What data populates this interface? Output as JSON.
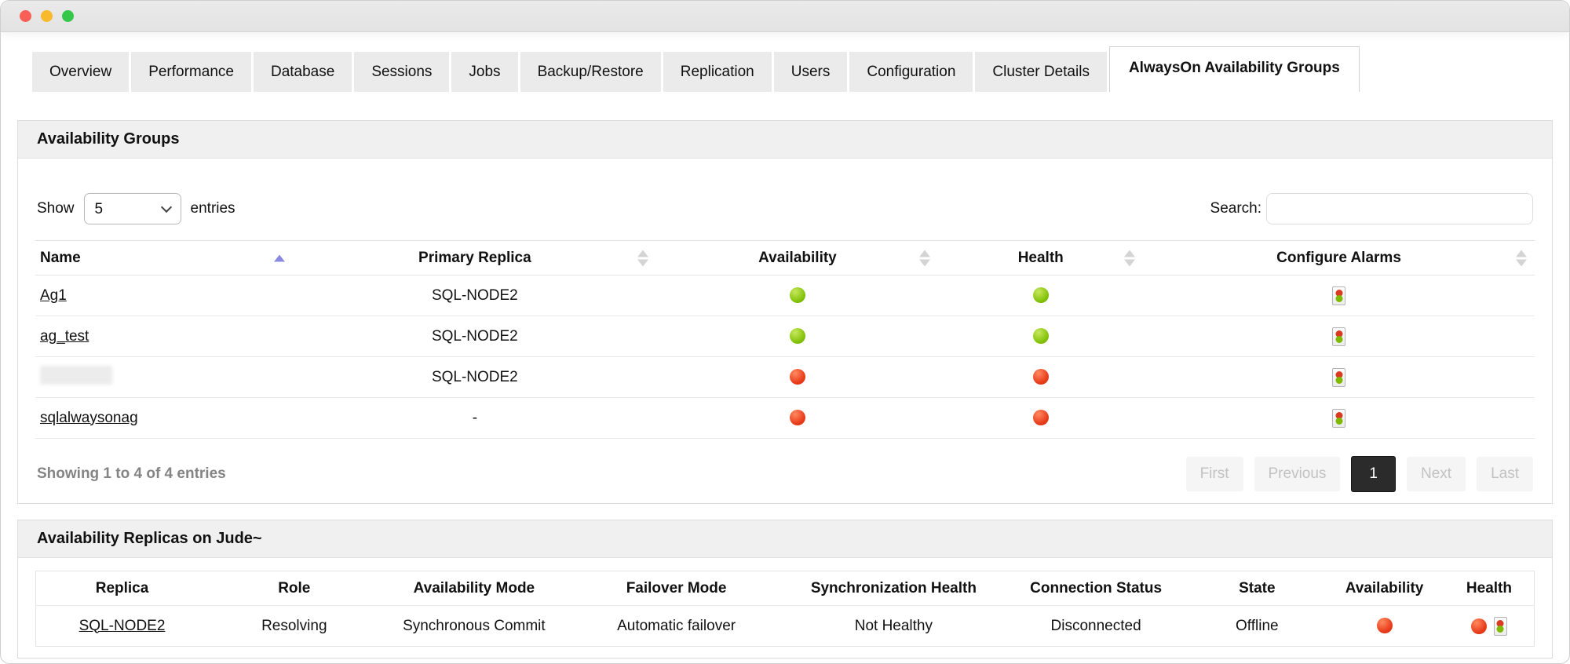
{
  "window": {
    "buttons": [
      {
        "name": "close",
        "color": "#f95f57"
      },
      {
        "name": "minimize",
        "color": "#f8ba2c"
      },
      {
        "name": "zoom",
        "color": "#34c749"
      }
    ]
  },
  "tabs": [
    {
      "label": "Overview",
      "active": false
    },
    {
      "label": "Performance",
      "active": false
    },
    {
      "label": "Database",
      "active": false
    },
    {
      "label": "Sessions",
      "active": false
    },
    {
      "label": "Jobs",
      "active": false
    },
    {
      "label": "Backup/Restore",
      "active": false
    },
    {
      "label": "Replication",
      "active": false
    },
    {
      "label": "Users",
      "active": false
    },
    {
      "label": "Configuration",
      "active": false
    },
    {
      "label": "Cluster Details",
      "active": false
    },
    {
      "label": "AlwaysOn Availability Groups",
      "active": true
    }
  ],
  "groups_panel": {
    "title": "Availability Groups",
    "show_label": "Show",
    "entries_label": "entries",
    "page_size_options": [
      "5"
    ],
    "page_size_selected": "5",
    "search_label": "Search:",
    "search_value": "",
    "columns": [
      {
        "label": "Name",
        "sort": "asc",
        "align": "left"
      },
      {
        "label": "Primary Replica",
        "sort": "both",
        "align": "center"
      },
      {
        "label": "Availability",
        "sort": "both",
        "align": "center"
      },
      {
        "label": "Health",
        "sort": "both",
        "align": "center"
      },
      {
        "label": "Configure Alarms",
        "sort": "both",
        "align": "center"
      }
    ],
    "rows": [
      {
        "name": "Ag1",
        "redacted": false,
        "primary_replica": "SQL-NODE2",
        "availability": "green",
        "health": "green",
        "configure_alarms_icon": "traffic-light-icon"
      },
      {
        "name": "ag_test",
        "redacted": false,
        "primary_replica": "SQL-NODE2",
        "availability": "green",
        "health": "green",
        "configure_alarms_icon": "traffic-light-icon"
      },
      {
        "name": "",
        "redacted": true,
        "primary_replica": "SQL-NODE2",
        "availability": "red",
        "health": "red",
        "configure_alarms_icon": "traffic-light-icon"
      },
      {
        "name": "sqlalwaysonag",
        "redacted": false,
        "primary_replica": "-",
        "availability": "red",
        "health": "red",
        "configure_alarms_icon": "traffic-light-icon"
      }
    ],
    "summary": "Showing 1 to 4 of 4 entries",
    "pagination": [
      {
        "label": "First",
        "state": "disabled"
      },
      {
        "label": "Previous",
        "state": "disabled"
      },
      {
        "label": "1",
        "state": "active"
      },
      {
        "label": "Next",
        "state": "disabled"
      },
      {
        "label": "Last",
        "state": "disabled"
      }
    ]
  },
  "replicas_panel": {
    "title": "Availability Replicas on Jude~",
    "columns": [
      "Replica",
      "Role",
      "Availability Mode",
      "Failover Mode",
      "Synchronization Health",
      "Connection Status",
      "State",
      "Availability",
      "Health"
    ],
    "column_widths": [
      "11.5%",
      "11.5%",
      "12.5%",
      "14.5%",
      "14.5%",
      "12.5%",
      "9%",
      "8%",
      "6%"
    ],
    "row": {
      "replica": "SQL-NODE2",
      "role": "Resolving",
      "availability_mode": "Synchronous Commit",
      "failover_mode": "Automatic failover",
      "synchronization_health": "Not Healthy",
      "connection_status": "Disconnected",
      "state": "Offline",
      "availability": "red",
      "health": "red",
      "health_icon": "traffic-light-icon"
    }
  },
  "colors": {
    "status_green": "#85c40c",
    "status_red": "#e83d1c",
    "sort_active_arrow": "#8a8ae0",
    "active_page_bg": "#2b2b2b",
    "panel_header_bg": "#f0f0f0"
  }
}
